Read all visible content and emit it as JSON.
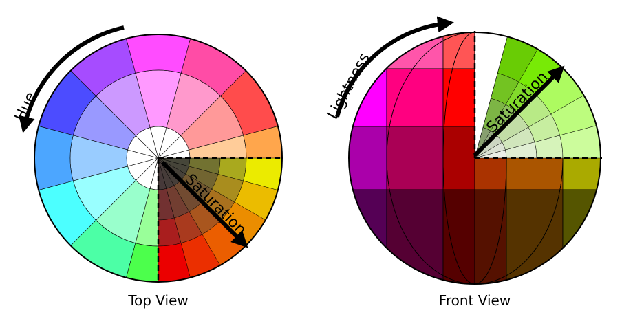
{
  "labels": {
    "hue": "Hue",
    "saturation_top": "Saturation",
    "lightness": "Lightness",
    "saturation_front": "Saturation",
    "top_view": "Top View",
    "front_view": "Front View"
  },
  "colors": {
    "outline": "#000000",
    "background": "#ffffff"
  },
  "top_view": {
    "sectors": 12,
    "rings": 3,
    "hues_deg": [
      240,
      210,
      180,
      150,
      120,
      90,
      60,
      30,
      0,
      330,
      300,
      270
    ]
  },
  "front_view": {
    "rows": [
      [
        "#ff55ff",
        "#ff55aa",
        "#ff5555",
        "#ffffff",
        "#ccffaa",
        "#aaff55"
      ],
      [
        "#ff00ff",
        "#ff0080",
        "#ff0000",
        "#ff0000",
        "#ff8000",
        "#ffff00"
      ],
      [
        "#aa00aa",
        "#aa0055",
        "#aa0000",
        "#aa3300",
        "#aa5500",
        "#aaaa00"
      ],
      [
        "#550055",
        "#550033",
        "#550000",
        "#551100",
        "#553300",
        "#555500"
      ]
    ]
  }
}
